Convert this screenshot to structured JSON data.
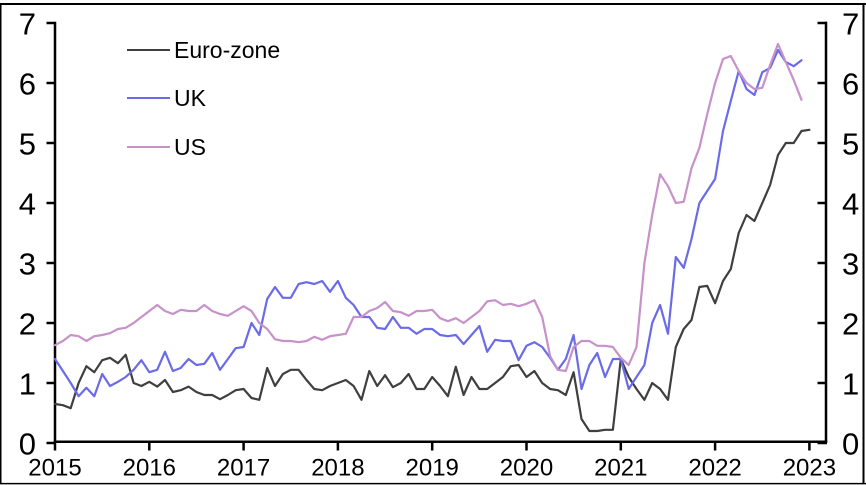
{
  "chart_data": {
    "type": "line",
    "title": "",
    "xlabel": "",
    "ylabel": "",
    "x_start": "2015-01",
    "x_frequency": "monthly",
    "x_tick_labels": [
      "2015",
      "2016",
      "2017",
      "2018",
      "2019",
      "2020",
      "2021",
      "2022",
      "2023"
    ],
    "y_tick_labels_left": [
      "0",
      "1",
      "2",
      "3",
      "4",
      "5",
      "6",
      "7"
    ],
    "y_tick_labels_right": [
      "0",
      "1",
      "2",
      "3",
      "4",
      "5",
      "6",
      "7"
    ],
    "ylim": [
      0,
      7
    ],
    "grid": false,
    "legend_position": "top-left",
    "series": [
      {
        "name": "Euro-zone",
        "color": "#3f3f3f",
        "values": [
          0.65,
          0.63,
          0.58,
          1.0,
          1.28,
          1.18,
          1.38,
          1.42,
          1.33,
          1.47,
          1.0,
          0.95,
          1.02,
          0.94,
          1.05,
          0.85,
          0.88,
          0.94,
          0.85,
          0.8,
          0.8,
          0.73,
          0.8,
          0.88,
          0.9,
          0.75,
          0.72,
          1.25,
          0.95,
          1.15,
          1.22,
          1.22,
          1.05,
          0.9,
          0.88,
          0.95,
          1.0,
          1.05,
          0.95,
          0.72,
          1.2,
          0.95,
          1.13,
          0.93,
          1.0,
          1.15,
          0.9,
          0.9,
          1.1,
          0.95,
          0.78,
          1.27,
          0.8,
          1.1,
          0.9,
          0.9,
          1.0,
          1.1,
          1.28,
          1.3,
          1.1,
          1.2,
          1.0,
          0.9,
          0.88,
          0.8,
          1.18,
          0.4,
          0.2,
          0.2,
          0.22,
          0.22,
          1.4,
          1.1,
          0.9,
          0.72,
          1.0,
          0.9,
          0.72,
          1.6,
          1.9,
          2.05,
          2.6,
          2.62,
          2.33,
          2.7,
          2.9,
          3.5,
          3.8,
          3.7,
          4.0,
          4.3,
          4.8,
          5.0,
          5.0,
          5.2,
          5.22
        ]
      },
      {
        "name": "UK",
        "color": "#6b6be8",
        "values": [
          1.4,
          1.2,
          1.0,
          0.78,
          0.92,
          0.78,
          1.15,
          0.95,
          1.02,
          1.1,
          1.22,
          1.38,
          1.18,
          1.22,
          1.52,
          1.2,
          1.25,
          1.4,
          1.3,
          1.32,
          1.5,
          1.22,
          1.4,
          1.58,
          1.6,
          2.0,
          1.8,
          2.4,
          2.6,
          2.42,
          2.42,
          2.65,
          2.68,
          2.65,
          2.7,
          2.52,
          2.7,
          2.42,
          2.3,
          2.1,
          2.1,
          1.92,
          1.9,
          2.1,
          1.92,
          1.92,
          1.82,
          1.9,
          1.9,
          1.8,
          1.78,
          1.8,
          1.65,
          1.8,
          1.95,
          1.52,
          1.72,
          1.7,
          1.7,
          1.38,
          1.62,
          1.68,
          1.6,
          1.42,
          1.22,
          1.4,
          1.8,
          0.9,
          1.3,
          1.5,
          1.1,
          1.4,
          1.4,
          0.9,
          1.1,
          1.3,
          2.0,
          2.3,
          1.82,
          3.1,
          2.92,
          3.4,
          4.0,
          4.2,
          4.4,
          5.2,
          5.7,
          6.2,
          5.9,
          5.8,
          6.18,
          6.25,
          6.55,
          6.35,
          6.28,
          6.38
        ]
      },
      {
        "name": "US",
        "color": "#c791c9",
        "values": [
          1.63,
          1.7,
          1.8,
          1.78,
          1.7,
          1.78,
          1.8,
          1.83,
          1.9,
          1.92,
          2.0,
          2.1,
          2.2,
          2.3,
          2.2,
          2.15,
          2.22,
          2.2,
          2.2,
          2.3,
          2.2,
          2.15,
          2.12,
          2.2,
          2.28,
          2.2,
          2.0,
          1.9,
          1.73,
          1.7,
          1.7,
          1.68,
          1.7,
          1.77,
          1.72,
          1.78,
          1.8,
          1.82,
          2.1,
          2.1,
          2.2,
          2.25,
          2.35,
          2.2,
          2.18,
          2.12,
          2.2,
          2.2,
          2.22,
          2.08,
          2.03,
          2.08,
          2.0,
          2.1,
          2.2,
          2.36,
          2.38,
          2.3,
          2.32,
          2.28,
          2.32,
          2.38,
          2.1,
          1.45,
          1.22,
          1.2,
          1.6,
          1.7,
          1.7,
          1.62,
          1.62,
          1.6,
          1.42,
          1.3,
          1.6,
          3.0,
          3.8,
          4.48,
          4.28,
          4.0,
          4.02,
          4.58,
          4.92,
          5.48,
          6.0,
          6.4,
          6.45,
          6.2,
          6.0,
          5.9,
          5.92,
          6.3,
          6.65,
          6.35,
          6.05,
          5.72
        ]
      }
    ]
  },
  "frame": {
    "border_color": "#000000",
    "background": "#ffffff"
  }
}
